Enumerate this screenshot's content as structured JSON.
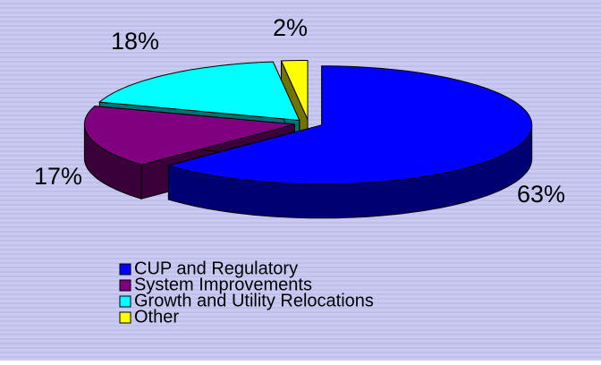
{
  "chart_data": {
    "type": "pie",
    "categories": [
      "CUP and Regulatory",
      "System Improvements",
      "Growth and Utility Relocations",
      "Other"
    ],
    "values": [
      63,
      17,
      18,
      2
    ],
    "value_labels": [
      "63%",
      "17%",
      "18%",
      "2%"
    ],
    "colors": [
      "#0000ff",
      "#800080",
      "#00ffff",
      "#ffff00"
    ],
    "legend": "bottom"
  }
}
